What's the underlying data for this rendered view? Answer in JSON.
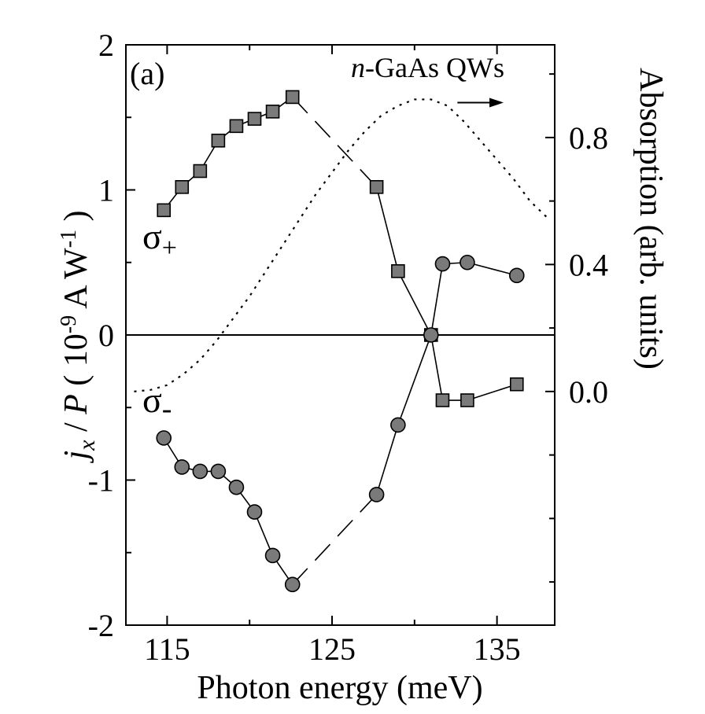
{
  "chart_data": {
    "type": "scatter",
    "panel_label": "(a)",
    "sample_label_italic": "n",
    "sample_label": "-GaAs QWs",
    "xlabel": "Photon energy (meV)",
    "ylabel_left": {
      "italic1": "j",
      "sub1": "x",
      "mid": " / ",
      "italic2": "P",
      "gap": "  ( 10",
      "sup1": "-9",
      "rest": " A W",
      "sup2": "-1",
      "close": " )"
    },
    "ylabel_right": "Absorption (arb. units)",
    "xlim": [
      112.5,
      138.5
    ],
    "ylim_left": [
      -2,
      2
    ],
    "ylim_right": [
      -0.736,
      1.092
    ],
    "x_ticks": [
      115,
      125,
      135
    ],
    "x_ticks_labels": [
      "115",
      "125",
      "135"
    ],
    "x_minor_ticks": [
      120,
      130
    ],
    "y_ticks_left": [
      -2,
      -1,
      0,
      1,
      2
    ],
    "y_ticks_left_labels": [
      "-2",
      "-1",
      "0",
      "1",
      "2"
    ],
    "y_minor_ticks_left": [
      -1.5,
      -0.5,
      0.5,
      1.5
    ],
    "y_ticks_right": [
      0.0,
      0.4,
      0.8
    ],
    "y_ticks_right_labels": [
      "0.0",
      "0.4",
      "0.8"
    ],
    "y_minor_ticks_right": [
      -0.6,
      -0.4,
      -0.2,
      0.2,
      0.6,
      1.0
    ],
    "grid": false,
    "series": [
      {
        "name": "σ+",
        "label_main": "σ",
        "label_sub": "+",
        "marker": "square",
        "color": "#7a7a7a",
        "x": [
          114.8,
          115.9,
          117.0,
          118.1,
          119.2,
          120.3,
          121.4,
          122.6,
          127.7,
          129.0,
          131.0,
          131.7,
          133.2,
          136.2
        ],
        "y": [
          0.86,
          1.02,
          1.13,
          1.34,
          1.44,
          1.49,
          1.54,
          1.64,
          1.02,
          0.44,
          0.0,
          -0.45,
          -0.45,
          -0.34
        ]
      },
      {
        "name": "σ-",
        "label_main": "σ",
        "label_sub": "-",
        "marker": "circle",
        "color": "#7a7a7a",
        "x": [
          114.8,
          115.9,
          117.0,
          118.1,
          119.2,
          120.3,
          121.4,
          122.6,
          127.7,
          129.0,
          131.0,
          131.7,
          133.2,
          136.2
        ],
        "y": [
          -0.71,
          -0.91,
          -0.94,
          -0.94,
          -1.05,
          -1.22,
          -1.52,
          -1.72,
          -1.1,
          -0.62,
          0.0,
          0.49,
          0.5,
          0.41
        ]
      },
      {
        "name": "absorption",
        "style": "dotted",
        "axis": "right",
        "x": [
          113.0,
          114.0,
          115.0,
          116.0,
          117.0,
          118.0,
          119.0,
          120.0,
          121.0,
          122.0,
          123.0,
          124.0,
          125.0,
          126.0,
          127.0,
          128.0,
          129.0,
          130.0,
          131.0,
          132.0,
          133.0,
          134.0,
          135.0,
          136.0,
          137.0,
          138.0
        ],
        "y": [
          0.0,
          0.005,
          0.02,
          0.055,
          0.1,
          0.16,
          0.23,
          0.3,
          0.38,
          0.46,
          0.54,
          0.62,
          0.69,
          0.76,
          0.82,
          0.87,
          0.9,
          0.92,
          0.92,
          0.9,
          0.85,
          0.79,
          0.73,
          0.67,
          0.6,
          0.55
        ]
      }
    ],
    "gap_segments": [
      {
        "series": "σ+",
        "x": [
          122.6,
          127.7
        ],
        "y": [
          1.64,
          1.02
        ]
      },
      {
        "series": "σ-",
        "x": [
          122.6,
          127.7
        ],
        "y": [
          -1.72,
          -1.1
        ]
      }
    ],
    "arrow": {
      "direction": "right",
      "x": [
        132.6,
        135.4
      ],
      "y_right": 0.91
    }
  }
}
